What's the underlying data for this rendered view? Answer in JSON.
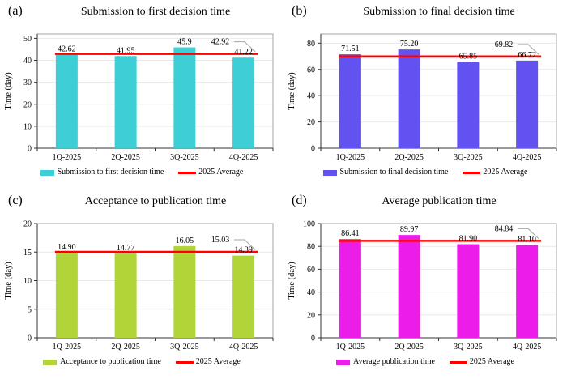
{
  "style": {
    "background": "#FFFFFF",
    "axis_color": "#333333",
    "border_color": "#A6A6A6",
    "grid_color": "#E9E9E9",
    "leader_color": "#A6A6A6",
    "text_color": "#000000",
    "average_line_color": "#FF0000"
  },
  "chart_data": [
    {
      "id": "a",
      "panel_label": "(a)",
      "type": "bar",
      "title": "Submission to first decision time",
      "categories": [
        "1Q-2025",
        "2Q-2025",
        "3Q-2025",
        "4Q-2025"
      ],
      "series": [
        {
          "name": "Submission to first decision time",
          "color": "#3DCFD5",
          "values": [
            42.62,
            41.95,
            45.9,
            41.22
          ]
        }
      ],
      "value_labels": [
        "42.62",
        "41.95",
        "45.9",
        "41.22"
      ],
      "average": {
        "label": "2025 Average",
        "value": 42.92,
        "display": "42.92"
      },
      "xlabel": "",
      "ylabel": "Time (day)",
      "ylim": [
        0,
        52
      ],
      "yticks": [
        0,
        10,
        20,
        30,
        40,
        50
      ],
      "grid": true,
      "legend_position": "bottom"
    },
    {
      "id": "b",
      "panel_label": "(b)",
      "type": "bar",
      "title": "Submission to final decision time",
      "categories": [
        "1Q-2025",
        "2Q-2025",
        "3Q-2025",
        "4Q-2025"
      ],
      "series": [
        {
          "name": "Submission to final decision time",
          "color": "#6252F0",
          "values": [
            71.51,
            75.2,
            65.85,
            66.72
          ]
        }
      ],
      "value_labels": [
        "71.51",
        "75.20",
        "65.85",
        "66.72"
      ],
      "average": {
        "label": "2025 Average",
        "value": 69.82,
        "display": "69.82"
      },
      "xlabel": "",
      "ylabel": "Time (day)",
      "ylim": [
        0,
        87
      ],
      "yticks": [
        0,
        20,
        40,
        60,
        80
      ],
      "grid": true,
      "legend_position": "bottom"
    },
    {
      "id": "c",
      "panel_label": "(c)",
      "type": "bar",
      "title": "Acceptance to publication time",
      "categories": [
        "1Q-2025",
        "2Q-2025",
        "3Q-2025",
        "4Q-2025"
      ],
      "series": [
        {
          "name": "Acceptance to publication time",
          "color": "#B1D439",
          "values": [
            14.9,
            14.77,
            16.05,
            14.39
          ]
        }
      ],
      "value_labels": [
        "14.90",
        "14.77",
        "16.05",
        "14.39"
      ],
      "average": {
        "label": "2025 Average",
        "value": 15.03,
        "display": "15.03"
      },
      "xlabel": "",
      "ylabel": "Time (day)",
      "ylim": [
        0,
        20
      ],
      "yticks": [
        0,
        5,
        10,
        15,
        20
      ],
      "grid": true,
      "legend_position": "bottom"
    },
    {
      "id": "d",
      "panel_label": "(d)",
      "type": "bar",
      "title": "Average publication time",
      "categories": [
        "1Q-2025",
        "2Q-2025",
        "3Q-2025",
        "4Q-2025"
      ],
      "series": [
        {
          "name": "Average publication time",
          "color": "#EC1CE9",
          "values": [
            86.41,
            89.97,
            81.9,
            81.1
          ]
        }
      ],
      "value_labels": [
        "86.41",
        "89.97",
        "81.90",
        "81.10"
      ],
      "average": {
        "label": "2025 Average",
        "value": 84.84,
        "display": "84.84"
      },
      "xlabel": "",
      "ylabel": "Time (day)",
      "ylim": [
        0,
        100
      ],
      "yticks": [
        0,
        20,
        40,
        60,
        80,
        100
      ],
      "grid": true,
      "legend_position": "bottom"
    }
  ]
}
